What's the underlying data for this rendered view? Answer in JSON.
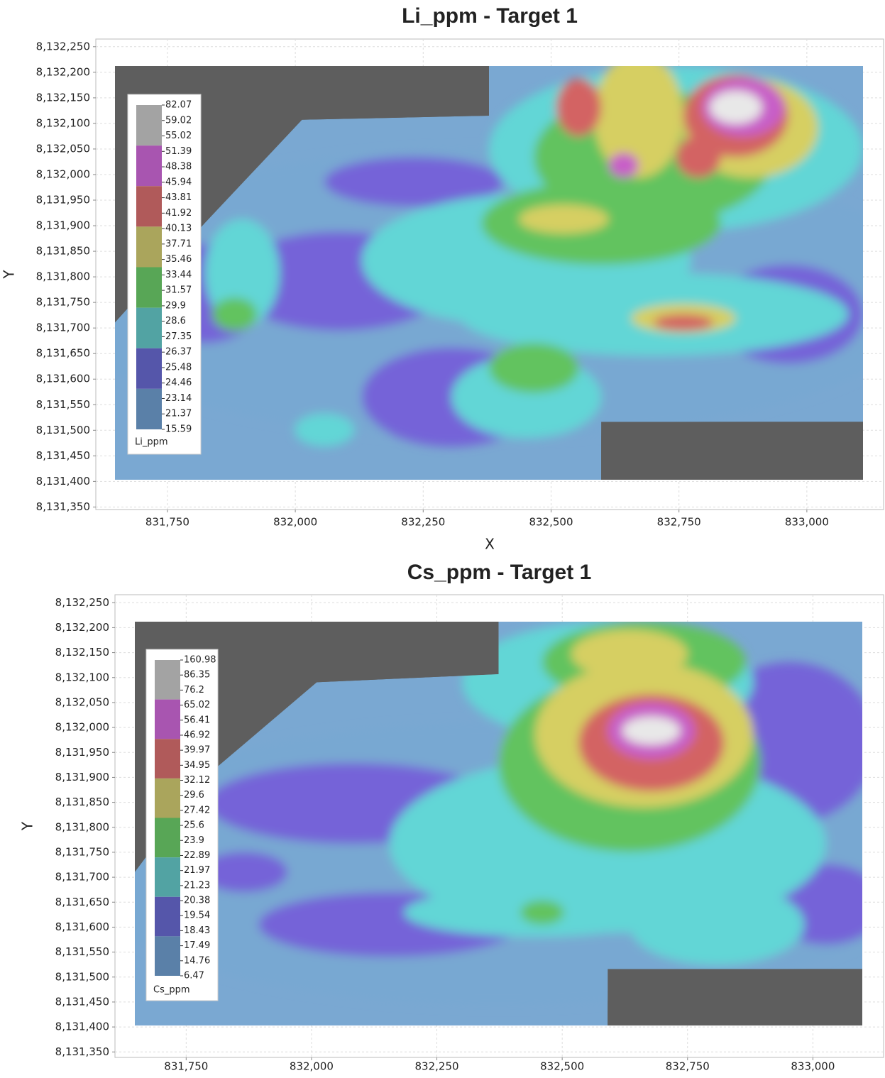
{
  "chart_data": [
    {
      "type": "heatmap",
      "title": "Li_ppm - Target 1",
      "x_label": "X",
      "y_label": "Y",
      "xlim": [
        831610,
        833150
      ],
      "xticks": [
        {
          "value": 831750,
          "label": "831,750"
        },
        {
          "value": 832000,
          "label": "832,000"
        },
        {
          "value": 832250,
          "label": "832,250"
        },
        {
          "value": 832500,
          "label": "832,500"
        },
        {
          "value": 832750,
          "label": "832,750"
        },
        {
          "value": 833000,
          "label": "833,000"
        }
      ],
      "ylim": [
        8131345,
        8132265
      ],
      "yticks": [
        {
          "value": 8131350,
          "label": "8,131,350"
        },
        {
          "value": 8131400,
          "label": "8,131,400"
        },
        {
          "value": 8131450,
          "label": "8,131,450"
        },
        {
          "value": 8131500,
          "label": "8,131,500"
        },
        {
          "value": 8131550,
          "label": "8,131,550"
        },
        {
          "value": 8131600,
          "label": "8,131,600"
        },
        {
          "value": 8131650,
          "label": "8,131,650"
        },
        {
          "value": 8131700,
          "label": "8,131,700"
        },
        {
          "value": 8131750,
          "label": "8,131,750"
        },
        {
          "value": 8131800,
          "label": "8,131,800"
        },
        {
          "value": 8131850,
          "label": "8,131,850"
        },
        {
          "value": 8131900,
          "label": "8,131,900"
        },
        {
          "value": 8131950,
          "label": "8,131,950"
        },
        {
          "value": 8132000,
          "label": "8,132,000"
        },
        {
          "value": 8132050,
          "label": "8,132,050"
        },
        {
          "value": 8132100,
          "label": "8,132,100"
        },
        {
          "value": 8132150,
          "label": "8,132,150"
        },
        {
          "value": 8132200,
          "label": "8,132,200"
        },
        {
          "value": 8132250,
          "label": "8,132,250"
        }
      ],
      "grid": true,
      "legend": {
        "title": "Li_ppm",
        "breaks": [
          82.07,
          59.02,
          55.02,
          51.39,
          48.38,
          45.94,
          43.81,
          41.92,
          40.13,
          37.71,
          35.46,
          33.44,
          31.57,
          29.9,
          28.6,
          27.35,
          26.37,
          25.48,
          24.46,
          23.14,
          21.37,
          15.59
        ],
        "colors": [
          "#a3a3a3",
          "#a855b0",
          "#b05a5a",
          "#aaa55c",
          "#58a656",
          "#52a3a3",
          "#5556aa",
          "#5a80a8"
        ]
      }
    },
    {
      "type": "heatmap",
      "title": "Cs_ppm - Target 1",
      "y_label": "Y",
      "xlim": [
        831608,
        833141
      ],
      "xticks": [
        {
          "value": 831750,
          "label": "831,750"
        },
        {
          "value": 832000,
          "label": "832,000"
        },
        {
          "value": 832250,
          "label": "832,250"
        },
        {
          "value": 832500,
          "label": "832,500"
        },
        {
          "value": 832750,
          "label": "832,750"
        },
        {
          "value": 833000,
          "label": "833,000"
        }
      ],
      "ylim": [
        8131339,
        8132266
      ],
      "yticks": [
        {
          "value": 8131350,
          "label": "8,131,350"
        },
        {
          "value": 8131400,
          "label": "8,131,400"
        },
        {
          "value": 8131450,
          "label": "8,131,450"
        },
        {
          "value": 8131500,
          "label": "8,131,500"
        },
        {
          "value": 8131550,
          "label": "8,131,550"
        },
        {
          "value": 8131600,
          "label": "8,131,600"
        },
        {
          "value": 8131650,
          "label": "8,131,650"
        },
        {
          "value": 8131700,
          "label": "8,131,700"
        },
        {
          "value": 8131750,
          "label": "8,131,750"
        },
        {
          "value": 8131800,
          "label": "8,131,800"
        },
        {
          "value": 8131850,
          "label": "8,131,850"
        },
        {
          "value": 8131900,
          "label": "8,131,900"
        },
        {
          "value": 8131950,
          "label": "8,131,950"
        },
        {
          "value": 8132000,
          "label": "8,132,000"
        },
        {
          "value": 8132050,
          "label": "8,132,050"
        },
        {
          "value": 8132100,
          "label": "8,132,100"
        },
        {
          "value": 8132150,
          "label": "8,132,150"
        },
        {
          "value": 8132200,
          "label": "8,132,200"
        },
        {
          "value": 8132250,
          "label": "8,132,250"
        }
      ],
      "grid": true,
      "legend": {
        "title": "Cs_ppm",
        "breaks": [
          160.98,
          86.35,
          76.2,
          65.02,
          56.41,
          46.92,
          39.97,
          34.95,
          32.12,
          29.6,
          27.42,
          25.6,
          23.9,
          22.89,
          21.97,
          21.23,
          20.38,
          19.54,
          18.43,
          17.49,
          14.76,
          6.47
        ],
        "colors": [
          "#a3a3a3",
          "#a855b0",
          "#b05a5a",
          "#aaa55c",
          "#58a656",
          "#52a3a3",
          "#5556aa",
          "#5a80a8"
        ]
      }
    }
  ]
}
